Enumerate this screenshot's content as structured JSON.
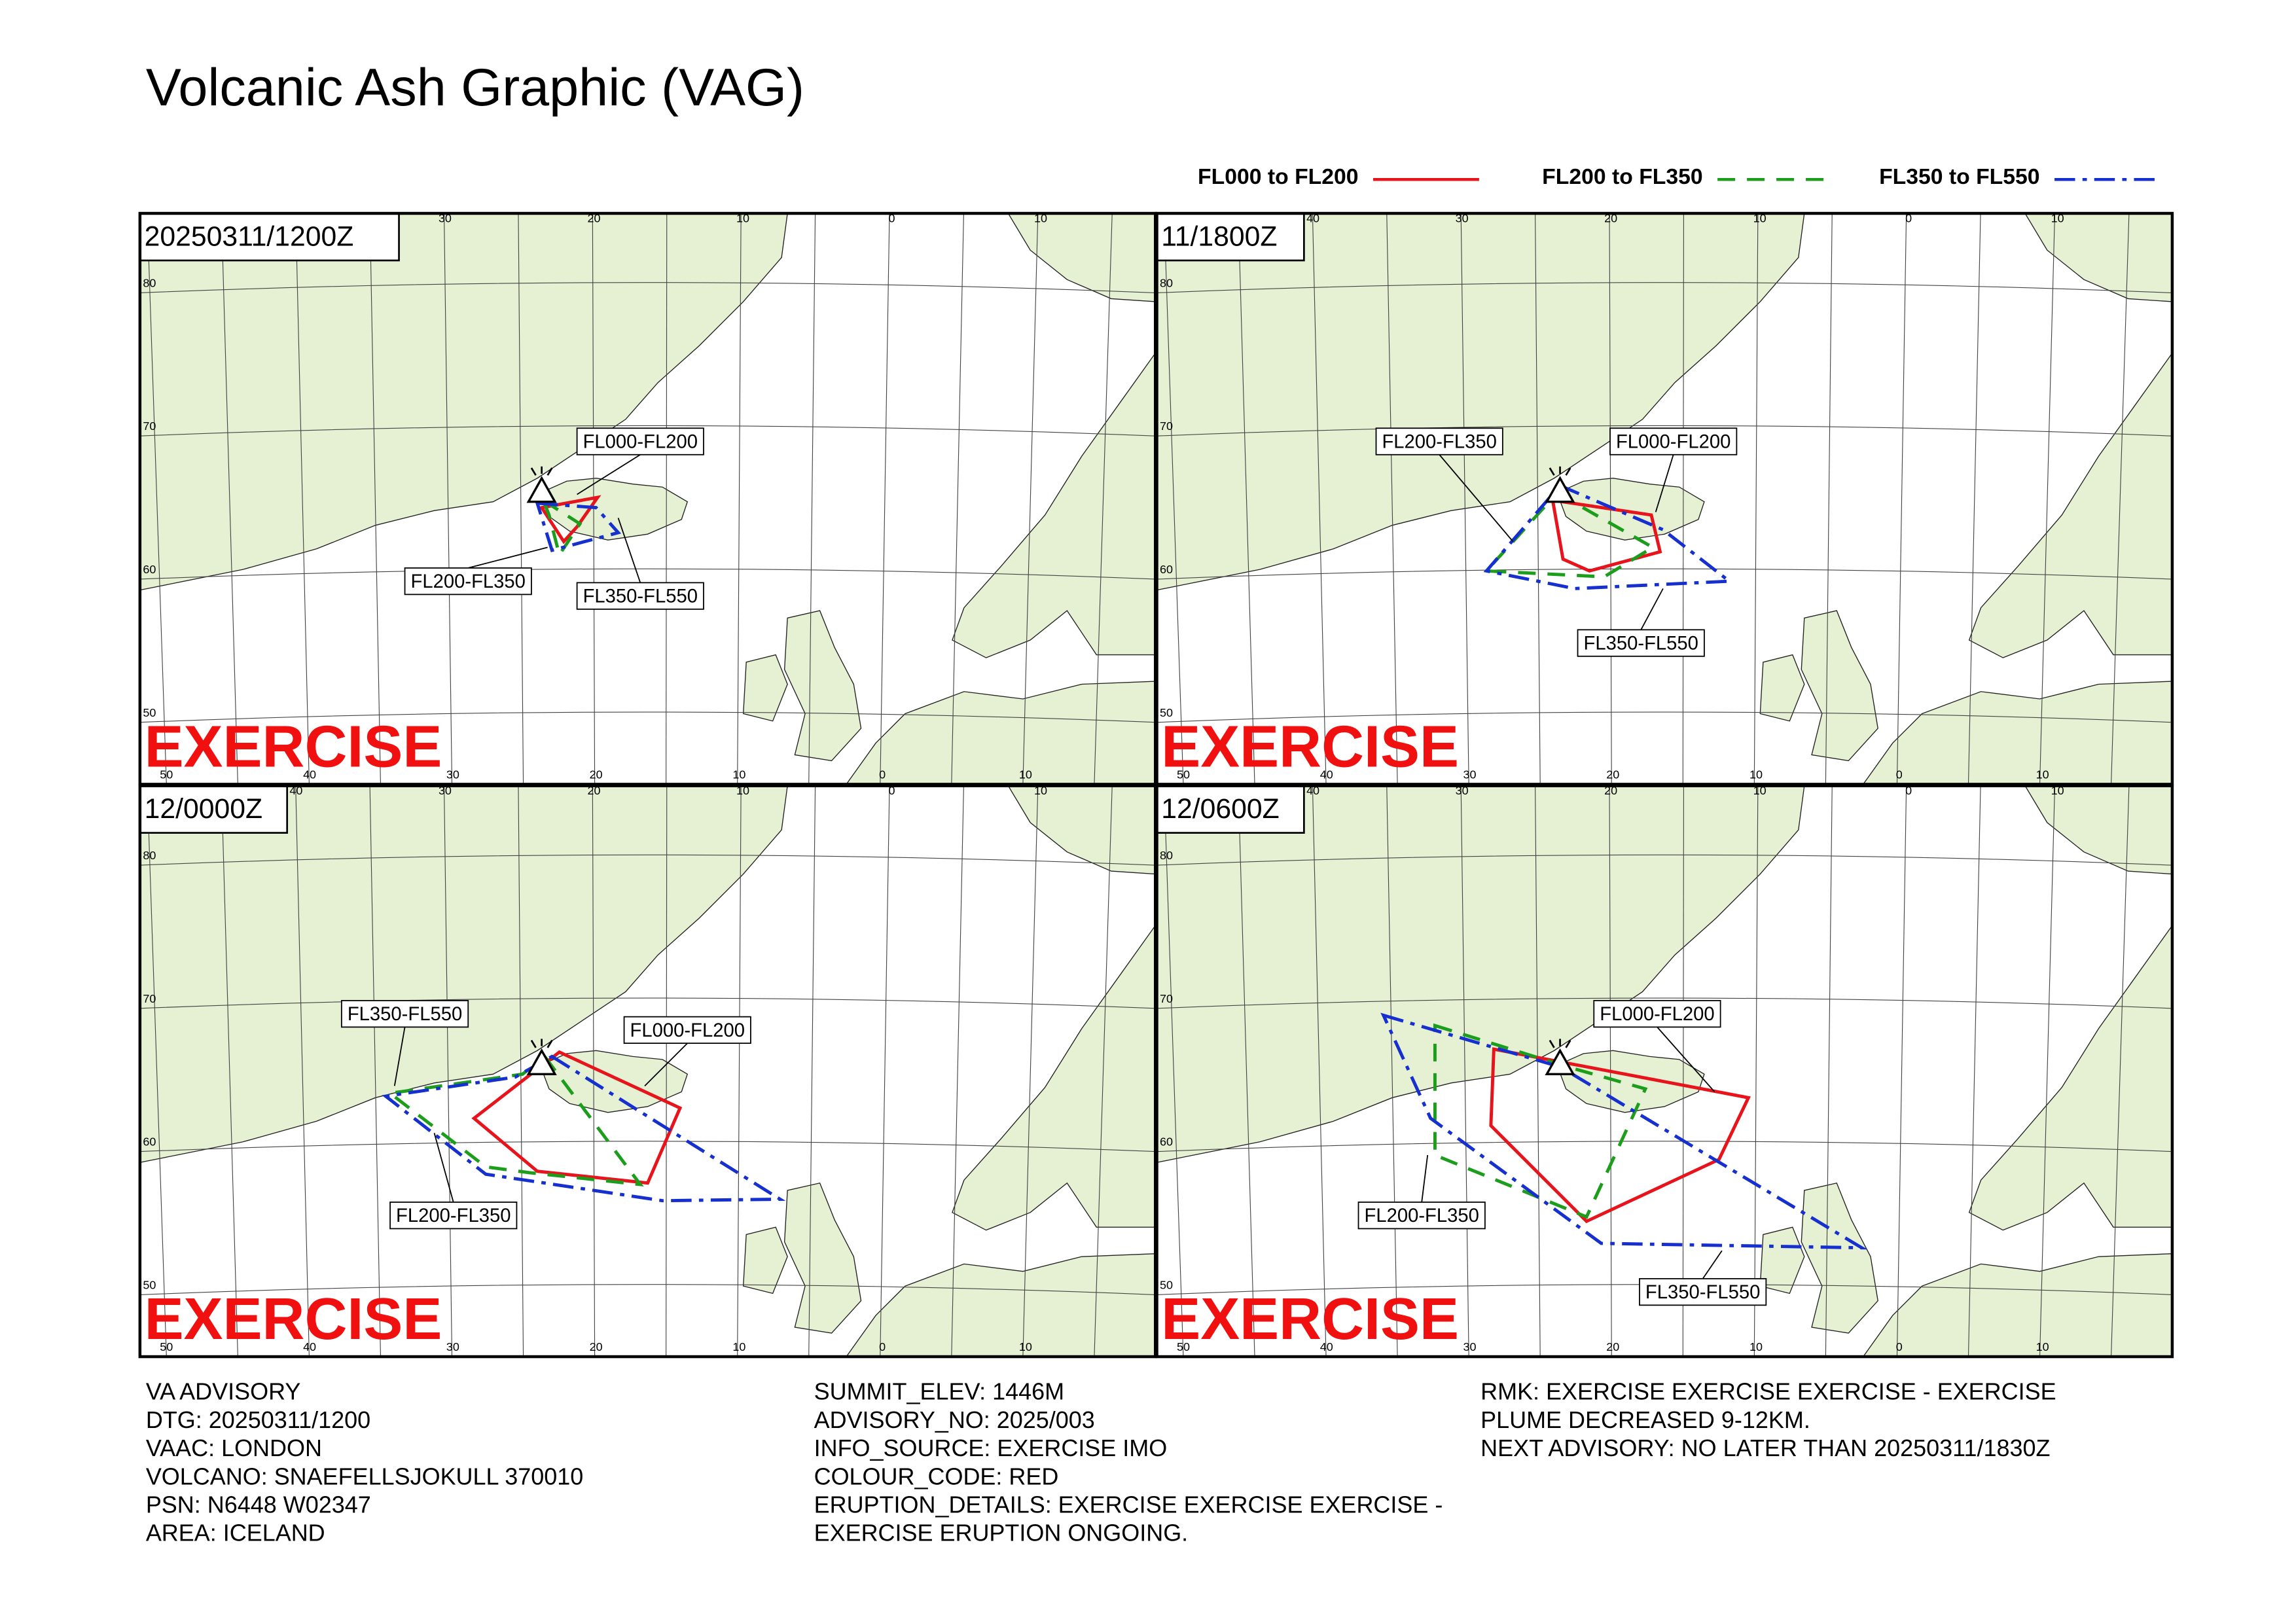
{
  "header": {
    "title": "Volcanic Ash Graphic (VAG)"
  },
  "legend": [
    {
      "label": "FL000 to FL200",
      "color": "#e8141c"
    },
    {
      "label": "FL200 to FL350",
      "color": "#1c9e1c"
    },
    {
      "label": "FL350 to FL550",
      "color": "#1630d0"
    }
  ],
  "map_grid": {
    "longitudes": [
      "50",
      "40",
      "30",
      "20",
      "10",
      "0",
      "10"
    ],
    "latitudes": [
      "80",
      "70",
      "60",
      "50"
    ]
  },
  "panels": [
    {
      "time": "20250311/1200Z",
      "watermark": "EXERCISE",
      "labels": [
        "FL000-FL200",
        "FL200-FL350",
        "FL350-FL550"
      ]
    },
    {
      "time": "11/1800Z",
      "watermark": "EXERCISE",
      "labels": [
        "FL000-FL200",
        "FL200-FL350",
        "FL350-FL550"
      ]
    },
    {
      "time": "12/0000Z",
      "watermark": "EXERCISE",
      "labels": [
        "FL000-FL200",
        "FL200-FL350",
        "FL350-FL550"
      ]
    },
    {
      "time": "12/0600Z",
      "watermark": "EXERCISE",
      "labels": [
        "FL000-FL200",
        "FL200-FL350",
        "FL350-FL550"
      ]
    }
  ],
  "advisory": {
    "columns": [
      [
        "VA ADVISORY",
        "DTG: 20250311/1200",
        "VAAC: LONDON",
        "VOLCANO: SNAEFELLSJOKULL 370010",
        "PSN: N6448 W02347",
        "AREA: ICELAND"
      ],
      [
        "SUMMIT_ELEV: 1446M",
        "ADVISORY_NO: 2025/003",
        "INFO_SOURCE: EXERCISE IMO",
        "COLOUR_CODE: RED",
        "ERUPTION_DETAILS: EXERCISE EXERCISE EXERCISE -",
        "EXERCISE ERUPTION ONGOING."
      ],
      [
        "RMK: EXERCISE EXERCISE EXERCISE - EXERCISE",
        "PLUME DECREASED 9-12KM.",
        "NEXT ADVISORY: NO LATER THAN 20250311/1830Z"
      ]
    ]
  }
}
